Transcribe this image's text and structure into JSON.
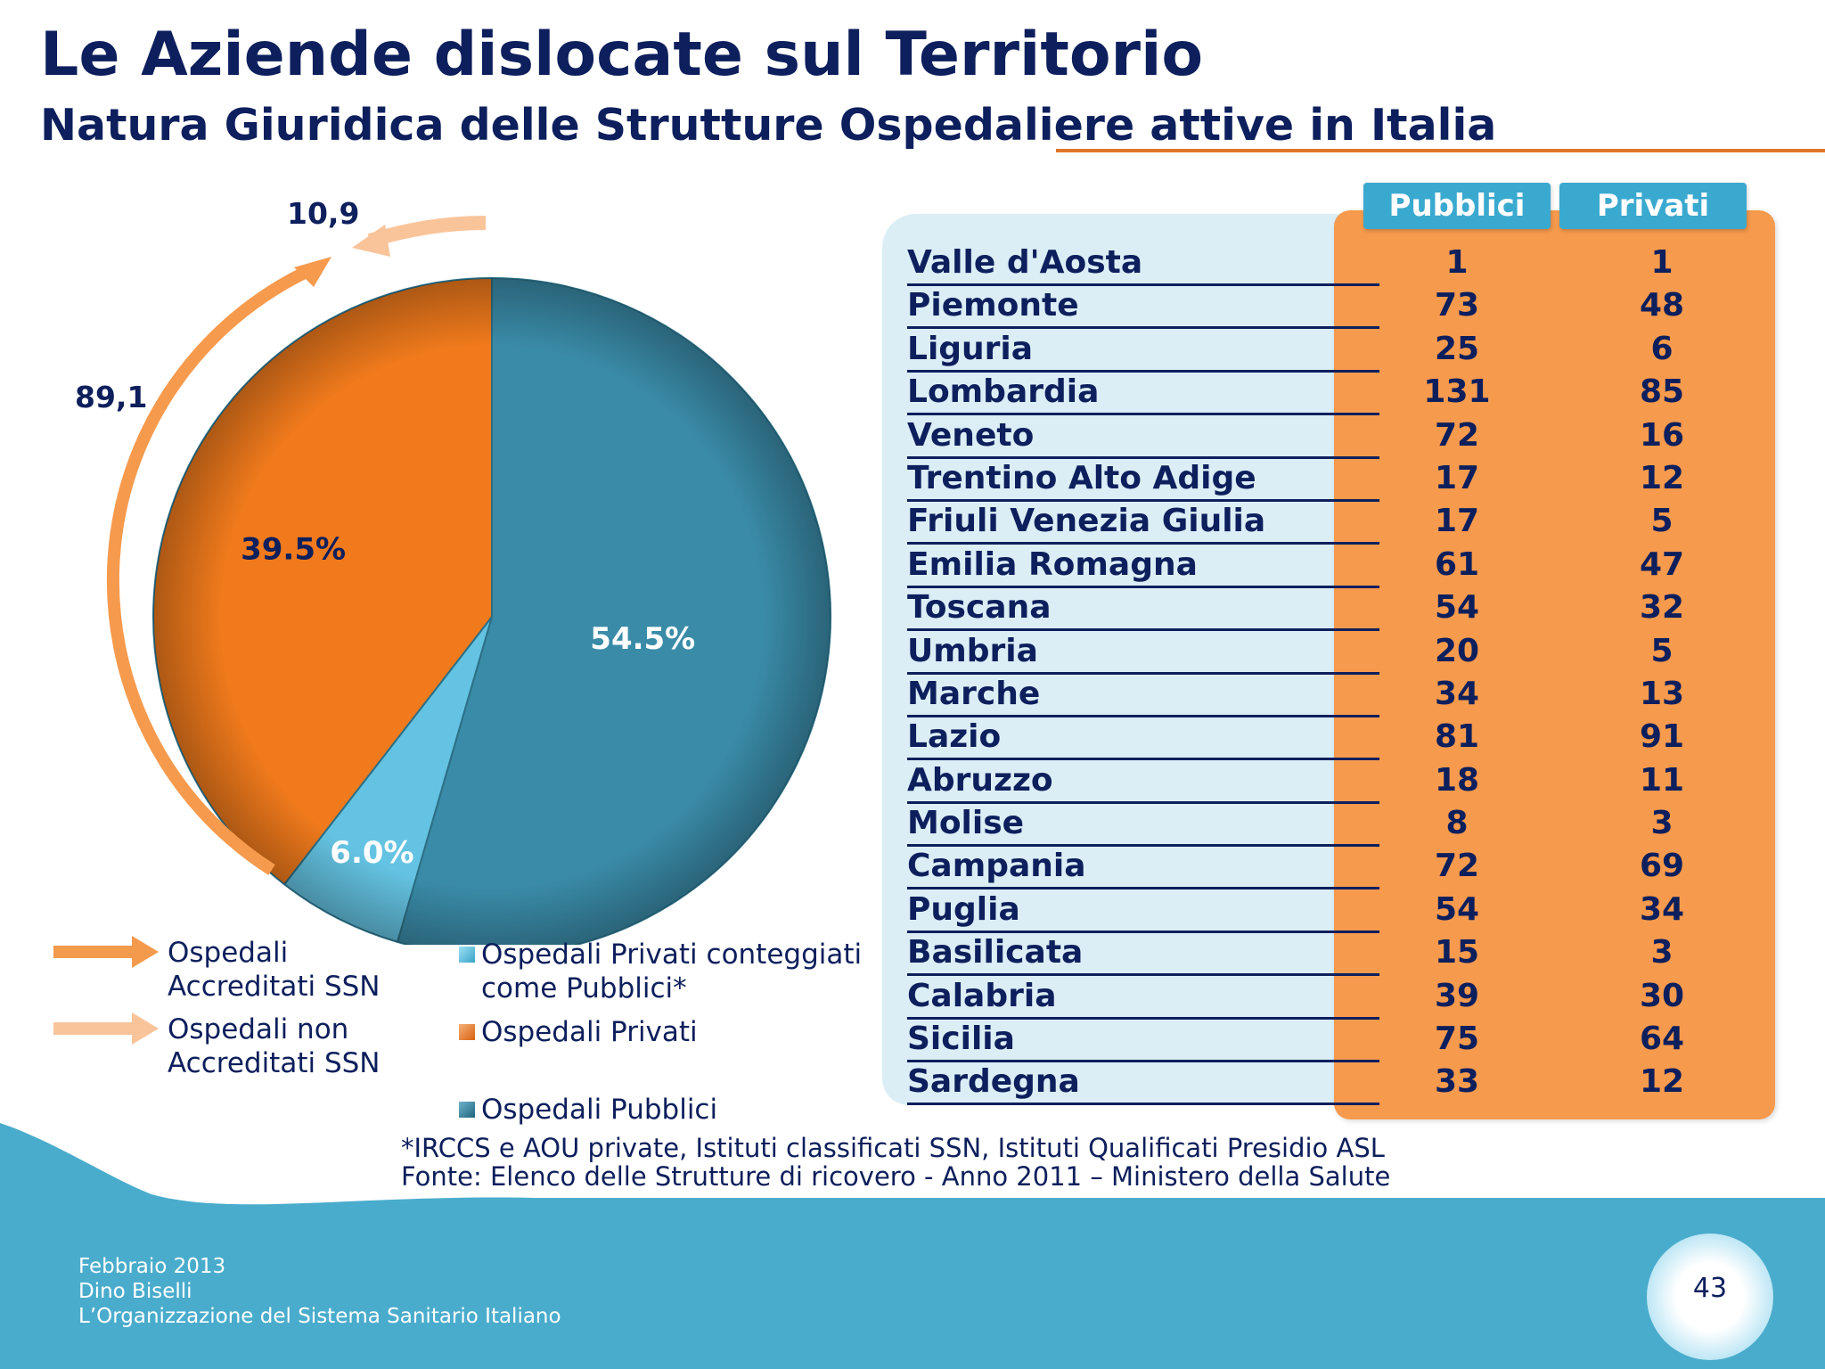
{
  "title": "Le Aziende dislocate sul Territorio",
  "subtitle": "Natura Giuridica delle Strutture Ospedaliere attive in Italia",
  "chart_data": [
    {
      "type": "pie",
      "slices": [
        {
          "label": "Ospedali Pubblici",
          "value": 54.5,
          "display": "54.5%",
          "color": "#3a8ba8"
        },
        {
          "label": "Ospedali Privati conteggiati come Pubblici*",
          "value": 6.0,
          "display": "6.0%",
          "color": "#64c3e2"
        },
        {
          "label": "Ospedali Privati",
          "value": 39.5,
          "display": "39.5%",
          "color": "#f07a1c"
        }
      ],
      "arrow_labels": {
        "accreditati": "89,1",
        "non_accreditati": "10,9"
      },
      "legend_placement": "bottom"
    },
    {
      "type": "table",
      "columns": [
        "Pubblici",
        "Privati"
      ],
      "rows": [
        {
          "region": "Valle d'Aosta",
          "pubblici": "1",
          "privati": "1"
        },
        {
          "region": "Piemonte",
          "pubblici": "73",
          "privati": "48"
        },
        {
          "region": "Liguria",
          "pubblici": "25",
          "privati": "6"
        },
        {
          "region": "Lombardia",
          "pubblici": "131",
          "privati": "85"
        },
        {
          "region": "Veneto",
          "pubblici": "72",
          "privati": "16"
        },
        {
          "region": "Trentino Alto Adige",
          "pubblici": "17",
          "privati": "12"
        },
        {
          "region": "Friuli Venezia Giulia",
          "pubblici": "17",
          "privati": "5"
        },
        {
          "region": "Emilia Romagna",
          "pubblici": "61",
          "privati": "47"
        },
        {
          "region": "Toscana",
          "pubblici": "54",
          "privati": "32"
        },
        {
          "region": "Umbria",
          "pubblici": "20",
          "privati": "5"
        },
        {
          "region": "Marche",
          "pubblici": "34",
          "privati": "13"
        },
        {
          "region": "Lazio",
          "pubblici": "81",
          "privati": "91"
        },
        {
          "region": "Abruzzo",
          "pubblici": "18",
          "privati": "11"
        },
        {
          "region": "Molise",
          "pubblici": "8",
          "privati": "3"
        },
        {
          "region": "Campania",
          "pubblici": "72",
          "privati": "69"
        },
        {
          "region": "Puglia",
          "pubblici": "54",
          "privati": "34"
        },
        {
          "region": "Basilicata",
          "pubblici": "15",
          "privati": "3"
        },
        {
          "region": "Calabria",
          "pubblici": "39",
          "privati": "30"
        },
        {
          "region": "Sicilia",
          "pubblici": "75",
          "privati": "64"
        },
        {
          "region": "Sardegna",
          "pubblici": "33",
          "privati": "12"
        }
      ]
    }
  ],
  "legend": {
    "accreditati": [
      "Ospedali",
      "Accreditati SSN"
    ],
    "non_accreditati": [
      "Ospedali non",
      "Accreditati SSN"
    ],
    "privati_pubblici": [
      "Ospedali Privati conteggiati",
      "come Pubblici*"
    ],
    "privati": "Ospedali Privati",
    "pubblici": "Ospedali Pubblici"
  },
  "footnote": {
    "line1": "*IRCCS e AOU private, Istituti  classificati SSN, Istituti Qualificati Presidio ASL",
    "line2": "Fonte: Elenco delle Strutture di ricovero - Anno 2011 – Ministero della Salute"
  },
  "footer": {
    "date": "Febbraio 2013",
    "author": "Dino Biselli",
    "doc": "L’Organizzazione del Sistema Sanitario Italiano",
    "page": "43"
  },
  "colors": {
    "navy": "#0d1f5c",
    "orange": "#f07a1c",
    "light_orange": "#f9c49a",
    "blue": "#3a8ba8",
    "light_blue": "#64c3e2",
    "table_orange": "#f69a4d",
    "header_blue": "#3aa9cf",
    "footer_blue": "#4aaccc"
  }
}
